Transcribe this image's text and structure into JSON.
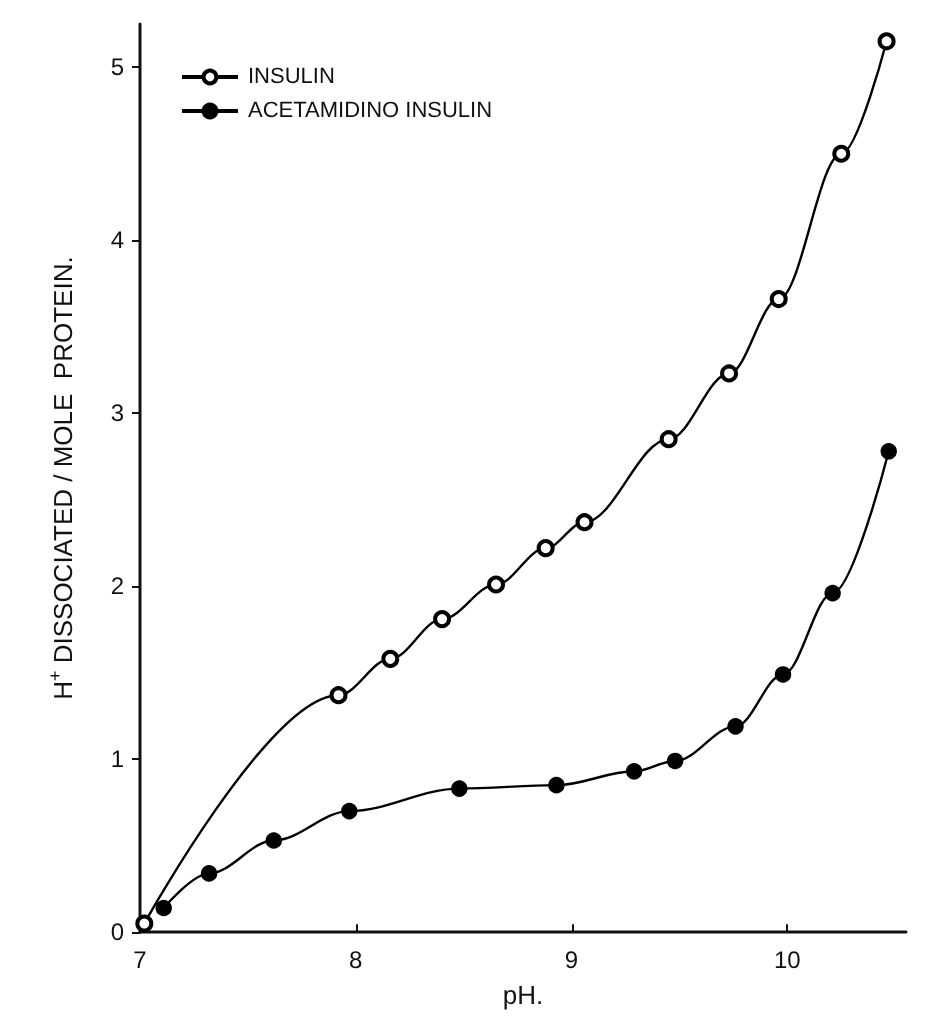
{
  "chart_data": {
    "type": "line",
    "xlabel": "pH.",
    "ylabel": "H$^{+}$ DISSOCIATED / MOLE  PROTEIN.",
    "xlim": [
      7,
      10.55
    ],
    "ylim": [
      0,
      5.25
    ],
    "xticks": [
      7,
      8,
      9,
      10
    ],
    "yticks": [
      0,
      1,
      2,
      3,
      4,
      5
    ],
    "grid": false,
    "legend": "top left",
    "marker": "circle",
    "line_style": "solid",
    "series": [
      {
        "name": "INSULIN",
        "color": "#000000",
        "x": [
          7.02,
          7.92,
          8.16,
          8.4,
          8.65,
          8.88,
          9.06,
          9.45,
          9.73,
          9.96,
          10.25,
          10.46
        ],
        "values": [
          0.05,
          1.37,
          1.58,
          1.81,
          2.01,
          2.22,
          2.37,
          2.85,
          3.23,
          3.66,
          4.5,
          5.15
        ]
      },
      {
        "name": "ACETAMIDINO INSULIN",
        "color": "#000000",
        "x": [
          7.11,
          7.32,
          7.62,
          7.97,
          8.48,
          8.93,
          9.29,
          9.48,
          9.76,
          9.98,
          10.21,
          10.47
        ],
        "values": [
          0.14,
          0.34,
          0.53,
          0.7,
          0.83,
          0.85,
          0.93,
          0.99,
          1.19,
          1.49,
          1.96,
          2.78
        ]
      }
    ]
  }
}
